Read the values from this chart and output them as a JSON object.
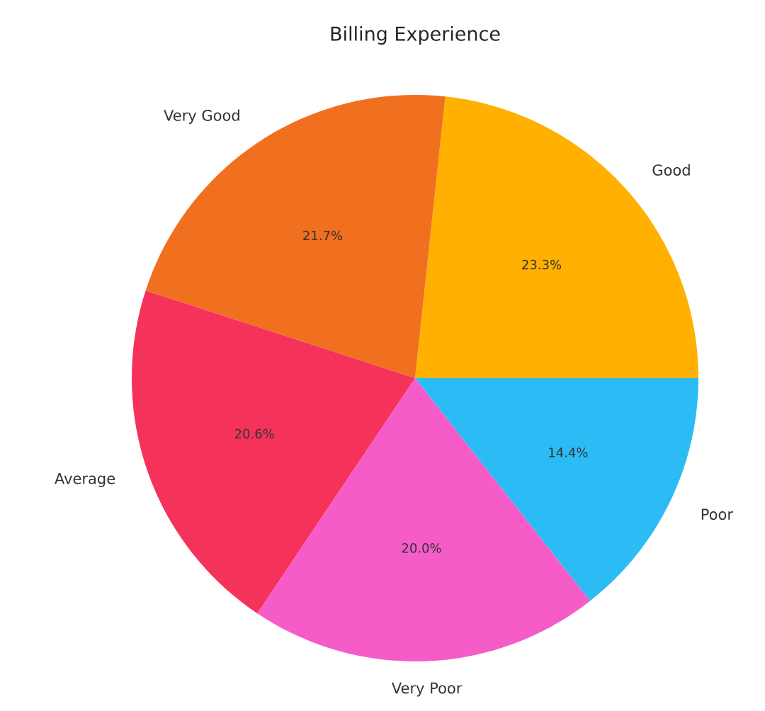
{
  "chart_data": {
    "type": "pie",
    "title": "Billing Experience",
    "categories": [
      "Good",
      "Very Good",
      "Average",
      "Very Poor",
      "Poor"
    ],
    "values": [
      23.3,
      21.7,
      20.6,
      20.0,
      14.4
    ],
    "value_labels": [
      "23.3%",
      "21.7%",
      "20.6%",
      "20.0%",
      "14.4%"
    ],
    "colors": [
      "#ffb000",
      "#f07020",
      "#f5325a",
      "#f55cc8",
      "#2bbcf5"
    ]
  }
}
